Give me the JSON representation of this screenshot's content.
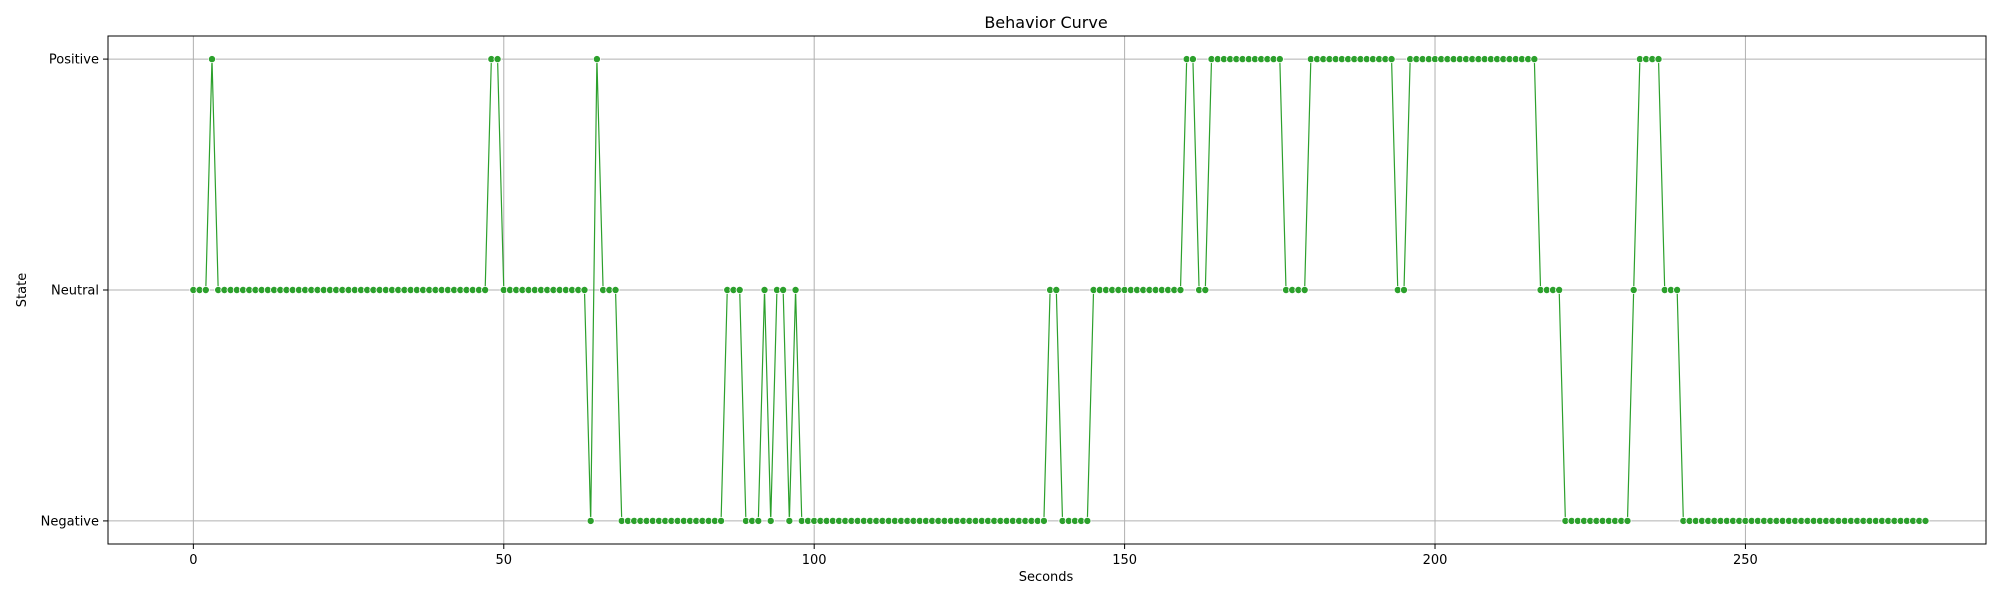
{
  "chart_data": {
    "type": "line",
    "title": "Behavior Curve",
    "xlabel": "Seconds",
    "ylabel": "State",
    "xlim": [
      -13.75,
      288.75
    ],
    "xticks": [
      0,
      50,
      100,
      150,
      200,
      250
    ],
    "ylim": [
      -0.1,
      2.1
    ],
    "yticks": [
      0,
      1,
      2
    ],
    "ytick_labels": [
      "Negative",
      "Neutral",
      "Positive"
    ],
    "grid": true,
    "marker": "circle",
    "colors": {
      "series": "#2ca02c",
      "grid": "#b0b0b0"
    },
    "series": [
      {
        "values": [
          1,
          1,
          1,
          2,
          1,
          1,
          1,
          1,
          1,
          1,
          1,
          1,
          1,
          1,
          1,
          1,
          1,
          1,
          1,
          1,
          1,
          1,
          1,
          1,
          1,
          1,
          1,
          1,
          1,
          1,
          1,
          1,
          1,
          1,
          1,
          1,
          1,
          1,
          1,
          1,
          1,
          1,
          1,
          1,
          1,
          1,
          1,
          1,
          2,
          2,
          1,
          1,
          1,
          1,
          1,
          1,
          1,
          1,
          1,
          1,
          1,
          1,
          1,
          1,
          0,
          2,
          1,
          1,
          1,
          0,
          0,
          0,
          0,
          0,
          0,
          0,
          0,
          0,
          0,
          0,
          0,
          0,
          0,
          0,
          0,
          0,
          1,
          1,
          1,
          0,
          0,
          0,
          1,
          0,
          1,
          1,
          0,
          1,
          0,
          0,
          0,
          0,
          0,
          0,
          0,
          0,
          0,
          0,
          0,
          0,
          0,
          0,
          0,
          0,
          0,
          0,
          0,
          0,
          0,
          0,
          0,
          0,
          0,
          0,
          0,
          0,
          0,
          0,
          0,
          0,
          0,
          0,
          0,
          0,
          0,
          0,
          0,
          0,
          1,
          1,
          0,
          0,
          0,
          0,
          0,
          1,
          1,
          1,
          1,
          1,
          1,
          1,
          1,
          1,
          1,
          1,
          1,
          1,
          1,
          1,
          2,
          2,
          1,
          1,
          2,
          2,
          2,
          2,
          2,
          2,
          2,
          2,
          2,
          2,
          2,
          2,
          1,
          1,
          1,
          1,
          2,
          2,
          2,
          2,
          2,
          2,
          2,
          2,
          2,
          2,
          2,
          2,
          2,
          2,
          1,
          1,
          2,
          2,
          2,
          2,
          2,
          2,
          2,
          2,
          2,
          2,
          2,
          2,
          2,
          2,
          2,
          2,
          2,
          2,
          2,
          2,
          2,
          1,
          1,
          1,
          1,
          0,
          0,
          0,
          0,
          0,
          0,
          0,
          0,
          0,
          0,
          0,
          1,
          2,
          2,
          2,
          2,
          1,
          1,
          1,
          0,
          0,
          0,
          0,
          0,
          0,
          0,
          0,
          0,
          0,
          0,
          0,
          0,
          0,
          0,
          0,
          0,
          0,
          0,
          0,
          0,
          0,
          0,
          0,
          0,
          0,
          0,
          0,
          0,
          0,
          0,
          0,
          0,
          0,
          0,
          0,
          0,
          0,
          0,
          0
        ]
      }
    ]
  }
}
